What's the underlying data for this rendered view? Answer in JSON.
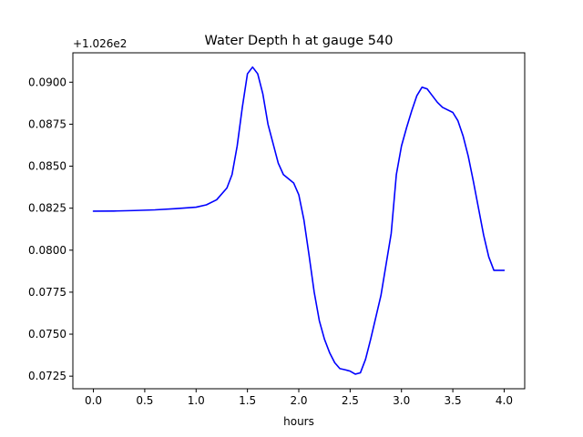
{
  "chart_data": {
    "type": "line",
    "title": "Water Depth h at gauge 540",
    "xlabel": "hours",
    "ylabel": "",
    "offset_label": "+1.026e2",
    "xlim": [
      -0.2,
      4.2
    ],
    "ylim": [
      0.07175,
      0.09175
    ],
    "xticks": [
      0.0,
      0.5,
      1.0,
      1.5,
      2.0,
      2.5,
      3.0,
      3.5,
      4.0
    ],
    "xtick_labels": [
      "0.0",
      "0.5",
      "1.0",
      "1.5",
      "2.0",
      "2.5",
      "3.0",
      "3.5",
      "4.0"
    ],
    "yticks": [
      0.0725,
      0.075,
      0.0775,
      0.08,
      0.0825,
      0.085,
      0.0875,
      0.09
    ],
    "ytick_labels": [
      "0.0725",
      "0.0750",
      "0.0775",
      "0.0800",
      "0.0825",
      "0.0850",
      "0.0875",
      "0.0900"
    ],
    "grid": false,
    "colors": {
      "series": "#0000ff"
    },
    "series": [
      {
        "name": "",
        "x": [
          0.0,
          0.2,
          0.4,
          0.6,
          0.8,
          1.0,
          1.1,
          1.2,
          1.3,
          1.35,
          1.4,
          1.45,
          1.5,
          1.55,
          1.6,
          1.65,
          1.7,
          1.8,
          1.85,
          1.95,
          2.0,
          2.05,
          2.1,
          2.15,
          2.2,
          2.25,
          2.3,
          2.35,
          2.4,
          2.45,
          2.5,
          2.55,
          2.6,
          2.65,
          2.7,
          2.8,
          2.9,
          2.95,
          3.0,
          3.05,
          3.1,
          3.15,
          3.2,
          3.25,
          3.3,
          3.35,
          3.4,
          3.5,
          3.55,
          3.6,
          3.65,
          3.7,
          3.75,
          3.8,
          3.85,
          3.9,
          3.95,
          4.0
        ],
        "y": [
          0.08232,
          0.08233,
          0.08236,
          0.0824,
          0.08247,
          0.08256,
          0.0827,
          0.083,
          0.0837,
          0.0845,
          0.0862,
          0.0885,
          0.0905,
          0.0909,
          0.0905,
          0.0893,
          0.0875,
          0.08518,
          0.0845,
          0.084,
          0.0833,
          0.0818,
          0.0797,
          0.0775,
          0.0758,
          0.0747,
          0.0739,
          0.0733,
          0.07295,
          0.07288,
          0.0728,
          0.07262,
          0.0727,
          0.0735,
          0.0747,
          0.0773,
          0.081,
          0.0845,
          0.0862,
          0.0873,
          0.0883,
          0.0892,
          0.0897,
          0.0896,
          0.0892,
          0.0888,
          0.0885,
          0.0882,
          0.0877,
          0.0868,
          0.0856,
          0.0841,
          0.0825,
          0.0809,
          0.0796,
          0.0788,
          0.0788,
          0.0788
        ]
      }
    ]
  }
}
